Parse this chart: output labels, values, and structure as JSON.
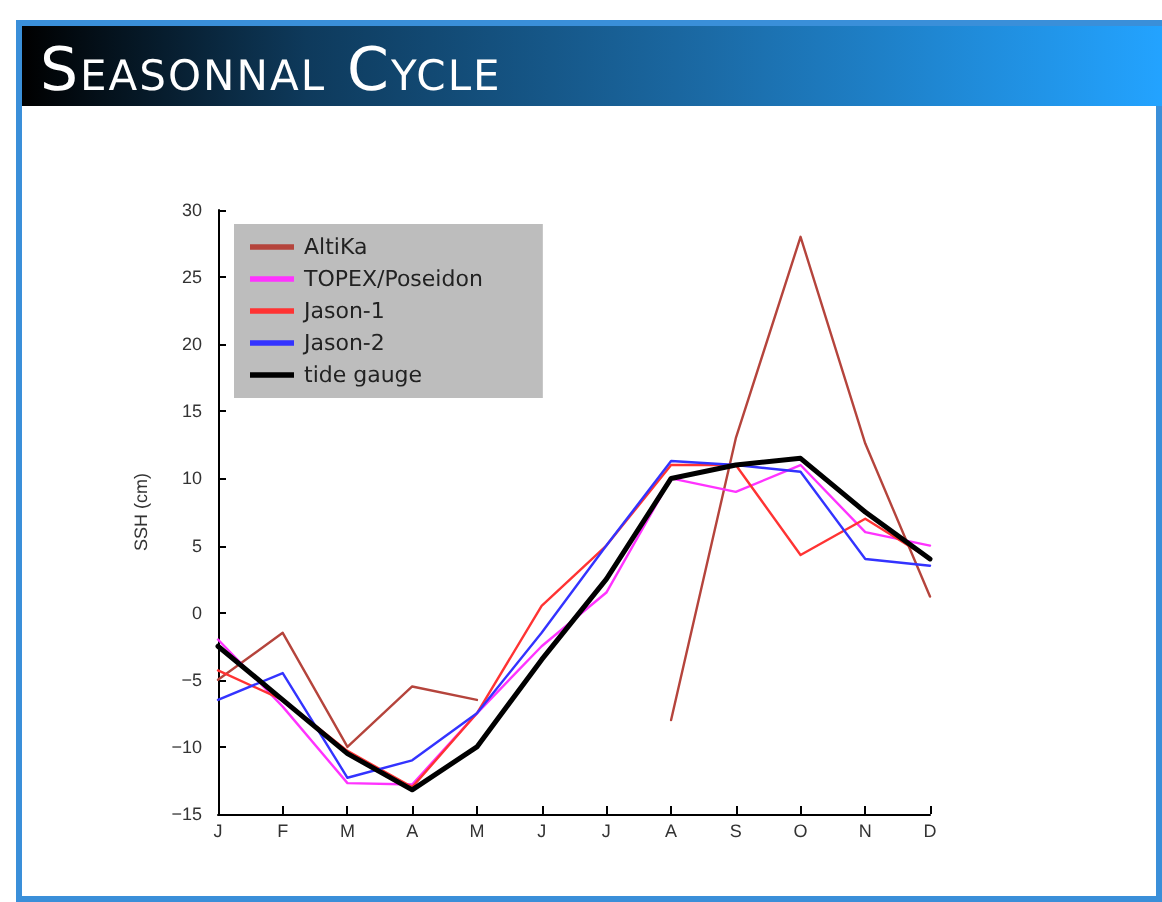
{
  "chart_data": {
    "type": "line",
    "title": "Seasonnal Cycle",
    "ylabel": "SSH (cm)",
    "categories": [
      "J",
      "F",
      "M",
      "A",
      "M",
      "J",
      "J",
      "A",
      "S",
      "O",
      "N",
      "D"
    ],
    "ylim": [
      -15,
      30
    ],
    "yticks": [
      -15,
      -10,
      -5,
      0,
      5,
      10,
      15,
      20,
      25,
      30
    ],
    "grid": false,
    "legend": "top left",
    "marker": "none",
    "line_style": "solid",
    "series": [
      {
        "name": "AltiKa",
        "color": "#b5443c",
        "values": [
          -5,
          -1.5,
          -10,
          -5.5,
          -6.5,
          null,
          null,
          -8,
          13,
          28,
          12.6,
          1.2
        ]
      },
      {
        "name": "TOPEX/Poseidon",
        "color": "#ff33ff",
        "values": [
          -2,
          -7,
          -12.7,
          -12.8,
          -7.5,
          -2.5,
          1.5,
          10,
          9,
          11,
          6,
          5
        ]
      },
      {
        "name": "Jason-1",
        "color": "#ff3333",
        "values": [
          -4.3,
          -6.5,
          -10.3,
          -13,
          -7.5,
          0.5,
          5,
          11,
          11,
          4.3,
          7,
          4
        ]
      },
      {
        "name": "Jason-2",
        "color": "#3333ff",
        "values": [
          -6.5,
          -4.5,
          -12.3,
          -11,
          -7.5,
          -1.5,
          5,
          11.3,
          11,
          10.5,
          4,
          3.5
        ]
      },
      {
        "name": "tide gauge",
        "color": "#000000",
        "values": [
          -2.5,
          -6.5,
          -10.5,
          -13.2,
          -10,
          -3.5,
          2.5,
          10,
          11,
          11.5,
          7.5,
          4
        ]
      }
    ]
  }
}
